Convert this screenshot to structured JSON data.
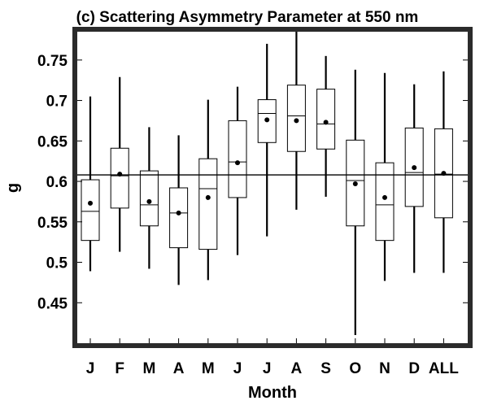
{
  "chart_data": {
    "type": "box",
    "title": "(c) Scattering Asymmetry Parameter at 550 nm",
    "xlabel": "Month",
    "ylabel": "g",
    "categories": [
      "J",
      "F",
      "M",
      "A",
      "M",
      "J",
      "J",
      "A",
      "S",
      "O",
      "N",
      "D",
      "ALL"
    ],
    "ylim": [
      0.4,
      0.785
    ],
    "yticks": [
      0.45,
      0.5,
      0.55,
      0.6,
      0.65,
      0.7,
      0.75
    ],
    "ytick_labels": [
      "0.45",
      "0.5",
      "0.55",
      "0.6",
      "0.65",
      "0.7",
      "0.75"
    ],
    "reference_line": 0.608,
    "grid": false,
    "boxes": [
      {
        "whisker_low": 0.489,
        "q1": 0.527,
        "median": 0.563,
        "q3": 0.602,
        "whisker_high": 0.705,
        "mean": 0.573
      },
      {
        "whisker_low": 0.513,
        "q1": 0.567,
        "median": 0.607,
        "q3": 0.641,
        "whisker_high": 0.729,
        "mean": 0.609
      },
      {
        "whisker_low": 0.492,
        "q1": 0.545,
        "median": 0.571,
        "q3": 0.613,
        "whisker_high": 0.667,
        "mean": 0.575
      },
      {
        "whisker_low": 0.472,
        "q1": 0.518,
        "median": 0.561,
        "q3": 0.592,
        "whisker_high": 0.657,
        "mean": 0.561
      },
      {
        "whisker_low": 0.478,
        "q1": 0.516,
        "median": 0.591,
        "q3": 0.628,
        "whisker_high": 0.701,
        "mean": 0.58
      },
      {
        "whisker_low": 0.509,
        "q1": 0.58,
        "median": 0.624,
        "q3": 0.675,
        "whisker_high": 0.717,
        "mean": 0.623
      },
      {
        "whisker_low": 0.532,
        "q1": 0.648,
        "median": 0.684,
        "q3": 0.701,
        "whisker_high": 0.77,
        "mean": 0.676
      },
      {
        "whisker_low": 0.565,
        "q1": 0.637,
        "median": 0.681,
        "q3": 0.719,
        "whisker_high": 0.785,
        "mean": 0.675
      },
      {
        "whisker_low": 0.581,
        "q1": 0.64,
        "median": 0.671,
        "q3": 0.714,
        "whisker_high": 0.755,
        "mean": 0.673
      },
      {
        "whisker_low": 0.41,
        "q1": 0.545,
        "median": 0.601,
        "q3": 0.651,
        "whisker_high": 0.738,
        "mean": 0.597
      },
      {
        "whisker_low": 0.477,
        "q1": 0.527,
        "median": 0.571,
        "q3": 0.623,
        "whisker_high": 0.734,
        "mean": 0.58
      },
      {
        "whisker_low": 0.487,
        "q1": 0.569,
        "median": 0.611,
        "q3": 0.666,
        "whisker_high": 0.72,
        "mean": 0.617
      },
      {
        "whisker_low": 0.487,
        "q1": 0.555,
        "median": 0.609,
        "q3": 0.665,
        "whisker_high": 0.736,
        "mean": 0.61
      }
    ]
  }
}
